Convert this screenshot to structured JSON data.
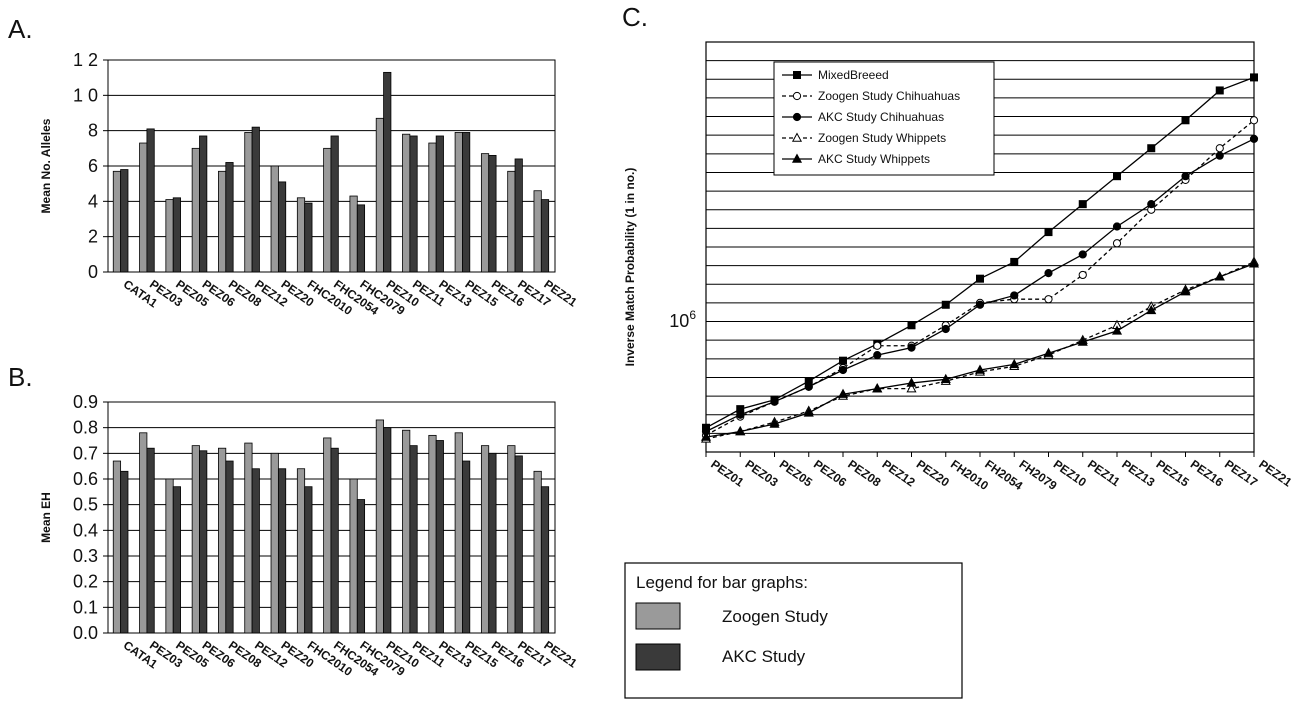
{
  "panels": {
    "a": "A.",
    "b": "B.",
    "c": "C."
  },
  "colors": {
    "zoogen": "#9a9a9a",
    "akc": "#3a3a3a",
    "grid": "#000000",
    "line": "#000000"
  },
  "legend_box": {
    "title": "Legend for bar graphs:",
    "items": [
      {
        "label": "Zoogen Study",
        "color": "#9a9a9a"
      },
      {
        "label": "AKC Study",
        "color": "#3a3a3a"
      }
    ]
  },
  "chart_data": [
    {
      "type": "bar",
      "panel": "A.",
      "ylabel": "Mean No. Alleles",
      "ylim": [
        0,
        12
      ],
      "yticks": [
        "0",
        "2",
        "4",
        "6",
        "8",
        "1 0",
        "1 2"
      ],
      "categories": [
        "CATA1",
        "PEZ03",
        "PEZ05",
        "PEZ06",
        "PEZ08",
        "PEZ12",
        "PEZ20",
        "FHC2010",
        "FHC2054",
        "FHC2079",
        "PEZ10",
        "PEZ11",
        "PEZ13",
        "PEZ15",
        "PEZ16",
        "PEZ17",
        "PEZ21"
      ],
      "series": [
        {
          "name": "Zoogen Study",
          "values": [
            5.7,
            7.3,
            4.1,
            7.0,
            5.7,
            7.9,
            6.0,
            4.2,
            7.0,
            4.3,
            8.7,
            7.8,
            7.3,
            7.9,
            6.7,
            5.7,
            4.6
          ]
        },
        {
          "name": "AKC Study",
          "values": [
            5.8,
            8.1,
            4.2,
            7.7,
            6.2,
            8.2,
            5.1,
            3.9,
            7.7,
            3.8,
            11.3,
            7.7,
            7.7,
            7.9,
            6.6,
            6.4,
            4.1
          ]
        }
      ]
    },
    {
      "type": "bar",
      "panel": "B.",
      "ylabel": "Mean EH",
      "ylim": [
        0,
        0.9
      ],
      "yticks": [
        "0.0",
        "0.1",
        "0.2",
        "0.3",
        "0.4",
        "0.5",
        "0.6",
        "0.7",
        "0.8",
        "0.9"
      ],
      "categories": [
        "CATA1",
        "PEZ03",
        "PEZ05",
        "PEZ06",
        "PEZ08",
        "PEZ12",
        "PEZ20",
        "FHC2010",
        "FHC2054",
        "FHC2079",
        "PEZ10",
        "PEZ11",
        "PEZ13",
        "PEZ15",
        "PEZ16",
        "PEZ17",
        "PEZ21"
      ],
      "series": [
        {
          "name": "Zoogen Study",
          "values": [
            0.67,
            0.78,
            0.6,
            0.73,
            0.72,
            0.74,
            0.7,
            0.64,
            0.76,
            0.6,
            0.83,
            0.79,
            0.77,
            0.78,
            0.73,
            0.73,
            0.63
          ]
        },
        {
          "name": "AKC Study",
          "values": [
            0.63,
            0.72,
            0.57,
            0.71,
            0.67,
            0.64,
            0.64,
            0.57,
            0.72,
            0.52,
            0.8,
            0.73,
            0.75,
            0.67,
            0.7,
            0.69,
            0.57
          ]
        }
      ]
    },
    {
      "type": "line",
      "panel": "C.",
      "ylabel": "Inverse Match Probability (1 in no.)",
      "yscale": "log",
      "ytick_label": "10^6",
      "grid": true,
      "legend_position": "top-left",
      "categories": [
        "PEZ01",
        "PEZ03",
        "PEZ05",
        "PEZ06",
        "PEZ08",
        "PEZ12",
        "PEZ20",
        "FH2010",
        "FH2054",
        "FH2079",
        "PEZ10",
        "PEZ11",
        "PEZ13",
        "PEZ15",
        "PEZ16",
        "PEZ17",
        "PEZ21"
      ],
      "series": [
        {
          "name": "MixedBreeed",
          "marker": "square-filled",
          "dash": "solid",
          "values": [
            0.3,
            1.3,
            1.8,
            2.8,
            3.9,
            4.8,
            5.8,
            6.9,
            8.3,
            9.2,
            10.8,
            12.3,
            13.8,
            15.3,
            16.8,
            18.4,
            19.1
          ]
        },
        {
          "name": "Zoogen Study Chihuahuas",
          "marker": "circle-open",
          "dash": "dashed",
          "values": [
            -0.1,
            0.9,
            1.7,
            2.5,
            3.5,
            4.7,
            4.7,
            5.8,
            7.0,
            7.2,
            7.2,
            8.5,
            10.2,
            12.0,
            13.6,
            15.3,
            16.8
          ]
        },
        {
          "name": "AKC Study Chihuahuas",
          "marker": "circle-filled",
          "dash": "solid",
          "values": [
            0.1,
            1.0,
            1.7,
            2.5,
            3.4,
            4.2,
            4.6,
            5.6,
            6.9,
            7.4,
            8.6,
            9.6,
            11.1,
            12.3,
            13.8,
            14.9,
            15.8
          ]
        },
        {
          "name": "Zoogen Study Whippets",
          "marker": "triangle-open",
          "dash": "dashed",
          "values": [
            -0.3,
            0.1,
            0.6,
            1.2,
            2.0,
            2.4,
            2.4,
            2.8,
            3.3,
            3.6,
            4.2,
            5.0,
            5.8,
            6.8,
            7.7,
            8.4,
            9.2
          ]
        },
        {
          "name": "AKC Study Whippets",
          "marker": "triangle-filled",
          "dash": "solid",
          "values": [
            -0.2,
            0.1,
            0.5,
            1.1,
            2.1,
            2.4,
            2.7,
            2.9,
            3.4,
            3.7,
            4.3,
            4.9,
            5.5,
            6.6,
            7.6,
            8.4,
            9.1
          ]
        }
      ]
    }
  ]
}
